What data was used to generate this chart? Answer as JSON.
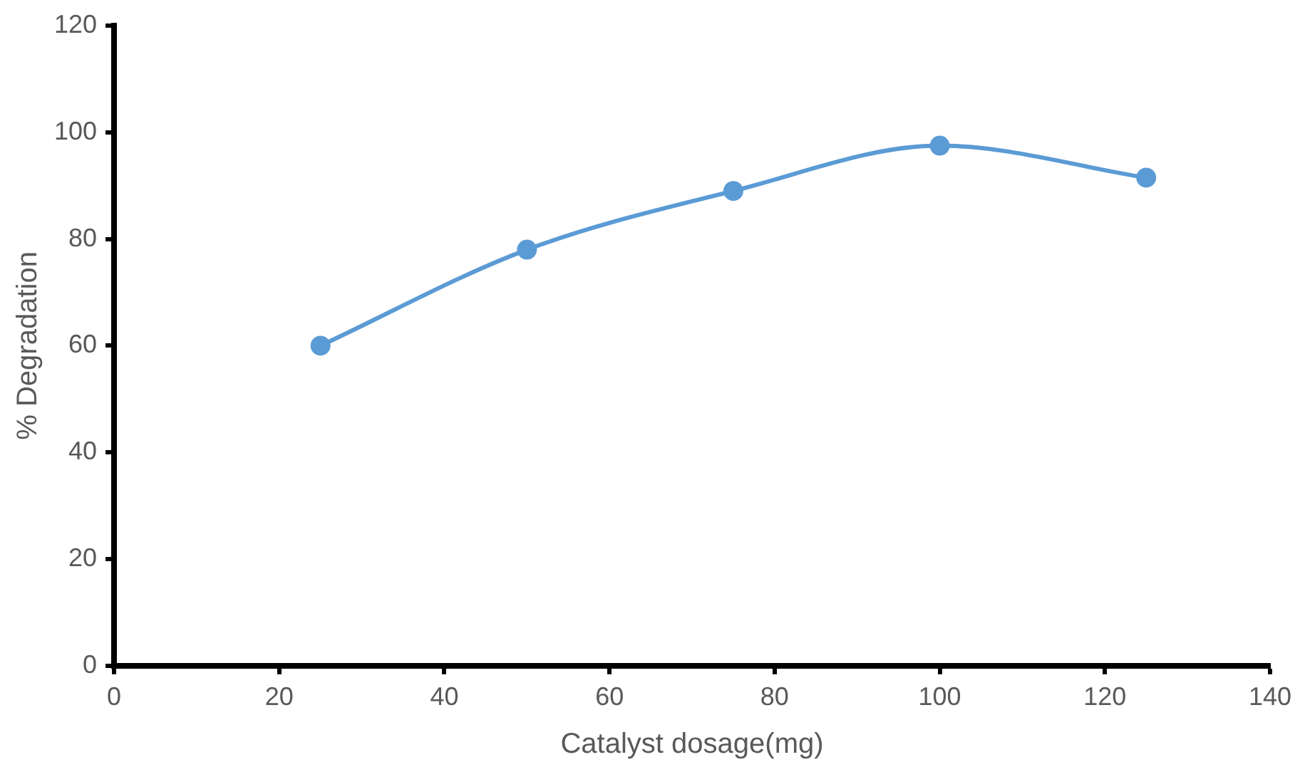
{
  "chart_data": {
    "type": "line",
    "xlabel": "Catalyst dosage(mg)",
    "ylabel": "% Degradation",
    "x": [
      25,
      50,
      75,
      100,
      125
    ],
    "series": [
      {
        "color": "#5b9bd5",
        "values": [
          60,
          78,
          89,
          97.5,
          91.5
        ]
      }
    ],
    "xlim": [
      0,
      140
    ],
    "xticks": [
      0,
      20,
      40,
      60,
      80,
      100,
      120,
      140
    ],
    "ylim": [
      0,
      120
    ],
    "yticks": [
      0,
      20,
      40,
      60,
      80,
      100,
      120
    ],
    "grid": false,
    "legend": false,
    "marker": "circle",
    "line_style": "solid"
  }
}
